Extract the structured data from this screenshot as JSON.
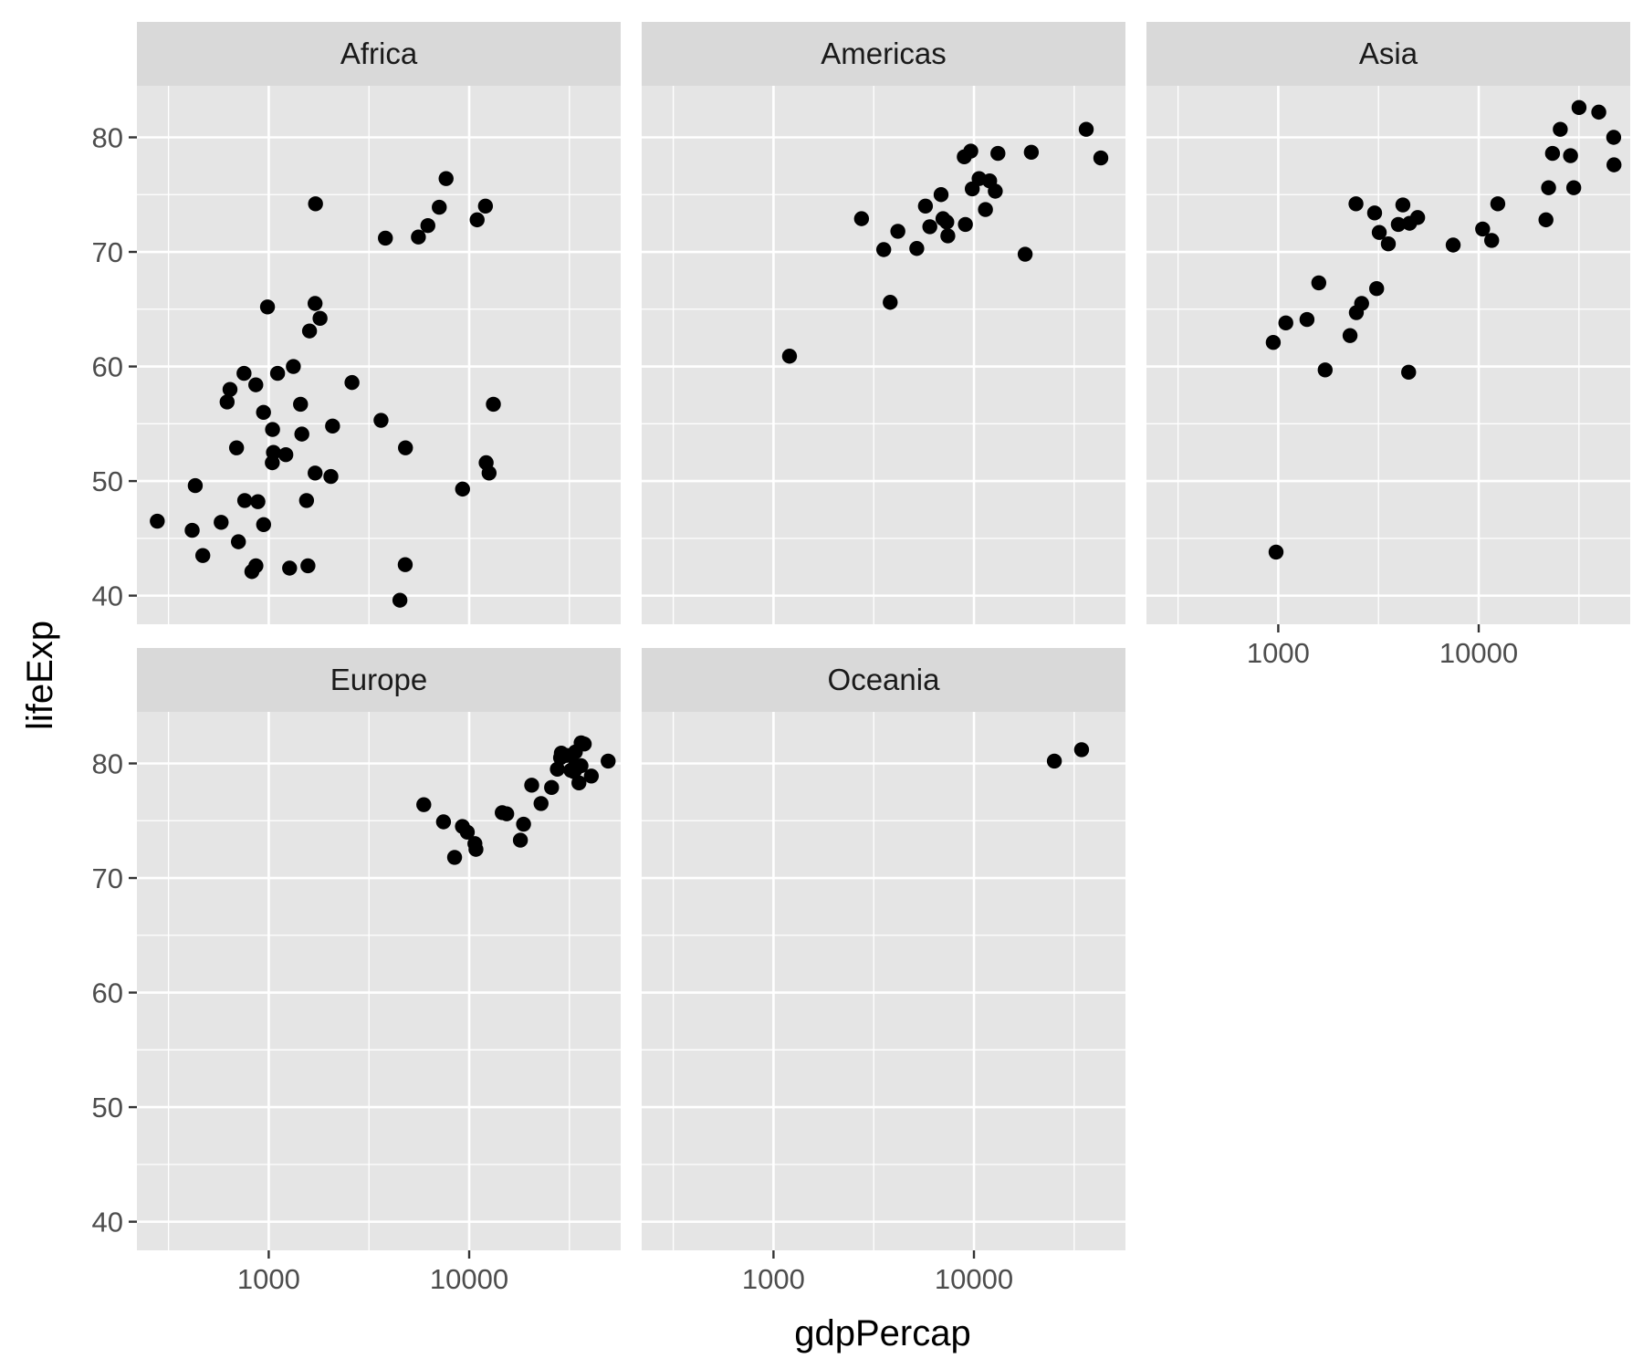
{
  "chart_data": {
    "type": "scatter",
    "layout": "facet_wrap",
    "xlabel": "gdpPercap",
    "ylabel": "lifeExp",
    "x_scale": "log10",
    "xlim": [
      220,
      57000
    ],
    "ylim": [
      37.5,
      84.5
    ],
    "x_ticks": [
      1000,
      10000
    ],
    "y_ticks": [
      40,
      50,
      60,
      70,
      80
    ],
    "grid": true,
    "colors": {
      "panel": "#e5e5e5",
      "strip": "#d9d9d9",
      "point": "#000000"
    },
    "panels": [
      {
        "name": "Africa",
        "points": [
          [
            6223,
            72.3
          ],
          [
            4797,
            42.7
          ],
          [
            1441,
            56.7
          ],
          [
            12570,
            50.7
          ],
          [
            1217,
            52.3
          ],
          [
            430,
            49.6
          ],
          [
            2042,
            50.4
          ],
          [
            706,
            44.7
          ],
          [
            1704,
            50.7
          ],
          [
            986,
            65.2
          ],
          [
            278,
            46.5
          ],
          [
            3633,
            55.3
          ],
          [
            1544,
            48.3
          ],
          [
            2082,
            54.8
          ],
          [
            5581,
            71.3
          ],
          [
            12154,
            51.6
          ],
          [
            641,
            58.0
          ],
          [
            691,
            52.9
          ],
          [
            13206,
            56.7
          ],
          [
            753,
            59.4
          ],
          [
            1327,
            60.0
          ],
          [
            942,
            56.0
          ],
          [
            579,
            46.4
          ],
          [
            1463,
            54.1
          ],
          [
            1569,
            42.6
          ],
          [
            415,
            45.7
          ],
          [
            12057,
            74.0
          ],
          [
            1045,
            54.5
          ],
          [
            759,
            48.3
          ],
          [
            1042,
            51.6
          ],
          [
            1803,
            64.2
          ],
          [
            10957,
            72.8
          ],
          [
            3820,
            71.2
          ],
          [
            824,
            42.1
          ],
          [
            4811,
            52.9
          ],
          [
            620,
            56.9
          ],
          [
            943,
            46.2
          ],
          [
            1703,
            65.5
          ],
          [
            863,
            42.6
          ],
          [
            1598,
            63.1
          ],
          [
            1712,
            74.2
          ],
          [
            862,
            58.4
          ],
          [
            7670,
            76.4
          ],
          [
            9270,
            49.3
          ],
          [
            2602,
            58.6
          ],
          [
            4513,
            39.6
          ],
          [
            1056,
            52.5
          ],
          [
            883,
            48.2
          ],
          [
            1271,
            42.4
          ],
          [
            469,
            43.5
          ],
          [
            1107,
            59.4
          ],
          [
            7093,
            73.9
          ]
        ]
      },
      {
        "name": "Americas",
        "points": [
          [
            12779,
            75.3
          ],
          [
            3822,
            65.6
          ],
          [
            9066,
            72.4
          ],
          [
            36319,
            80.7
          ],
          [
            13172,
            78.6
          ],
          [
            7007,
            72.9
          ],
          [
            9645,
            78.8
          ],
          [
            8948,
            78.3
          ],
          [
            6025,
            72.2
          ],
          [
            5728,
            74.0
          ],
          [
            6856,
            75.0
          ],
          [
            5186,
            70.3
          ],
          [
            1202,
            60.9
          ],
          [
            3548,
            70.2
          ],
          [
            7321,
            72.6
          ],
          [
            11978,
            76.2
          ],
          [
            2749,
            72.9
          ],
          [
            9809,
            75.5
          ],
          [
            4173,
            71.8
          ],
          [
            7409,
            71.4
          ],
          [
            19329,
            78.7
          ],
          [
            18009,
            69.8
          ],
          [
            42952,
            78.2
          ],
          [
            10611,
            76.4
          ],
          [
            11416,
            73.7
          ]
        ]
      },
      {
        "name": "Asia",
        "points": [
          [
            975,
            43.8
          ],
          [
            29796,
            75.6
          ],
          [
            1391,
            64.1
          ],
          [
            1714,
            59.7
          ],
          [
            4959,
            73.0
          ],
          [
            39725,
            82.2
          ],
          [
            2452,
            64.7
          ],
          [
            3541,
            70.7
          ],
          [
            11606,
            71.0
          ],
          [
            4471,
            59.5
          ],
          [
            25523,
            80.7
          ],
          [
            31656,
            82.6
          ],
          [
            4519,
            72.5
          ],
          [
            1593,
            67.3
          ],
          [
            23348,
            78.6
          ],
          [
            47307,
            77.6
          ],
          [
            10461,
            72.0
          ],
          [
            12452,
            74.2
          ],
          [
            3096,
            66.8
          ],
          [
            944,
            62.1
          ],
          [
            1091,
            63.8
          ],
          [
            22316,
            75.6
          ],
          [
            2606,
            65.5
          ],
          [
            3190,
            71.7
          ],
          [
            21655,
            72.8
          ],
          [
            47143,
            80.0
          ],
          [
            3970,
            72.4
          ],
          [
            4185,
            74.1
          ],
          [
            28718,
            78.4
          ],
          [
            7458,
            70.6
          ],
          [
            2442,
            74.2
          ],
          [
            3025,
            73.4
          ],
          [
            2281,
            62.7
          ]
        ]
      },
      {
        "name": "Europe",
        "points": [
          [
            5937,
            76.4
          ],
          [
            36126,
            79.8
          ],
          [
            33693,
            79.4
          ],
          [
            7446,
            74.9
          ],
          [
            10681,
            73.0
          ],
          [
            14619,
            75.7
          ],
          [
            22833,
            76.5
          ],
          [
            35278,
            78.3
          ],
          [
            33207,
            79.3
          ],
          [
            30470,
            80.7
          ],
          [
            32170,
            79.4
          ],
          [
            27538,
            79.5
          ],
          [
            18009,
            73.3
          ],
          [
            36181,
            81.8
          ],
          [
            40676,
            78.9
          ],
          [
            28569,
            80.5
          ],
          [
            9254,
            74.5
          ],
          [
            33860,
            79.8
          ],
          [
            49357,
            80.2
          ],
          [
            15390,
            75.6
          ],
          [
            20510,
            78.1
          ],
          [
            10808,
            72.5
          ],
          [
            9787,
            74.0
          ],
          [
            18678,
            74.7
          ],
          [
            25768,
            77.9
          ],
          [
            28822,
            80.9
          ],
          [
            33860,
            81.0
          ],
          [
            37506,
            81.7
          ],
          [
            8458,
            71.8
          ],
          [
            33203,
            79.4
          ]
        ]
      },
      {
        "name": "Oceania",
        "points": [
          [
            34435,
            81.2
          ],
          [
            25185,
            80.2
          ]
        ]
      }
    ]
  }
}
